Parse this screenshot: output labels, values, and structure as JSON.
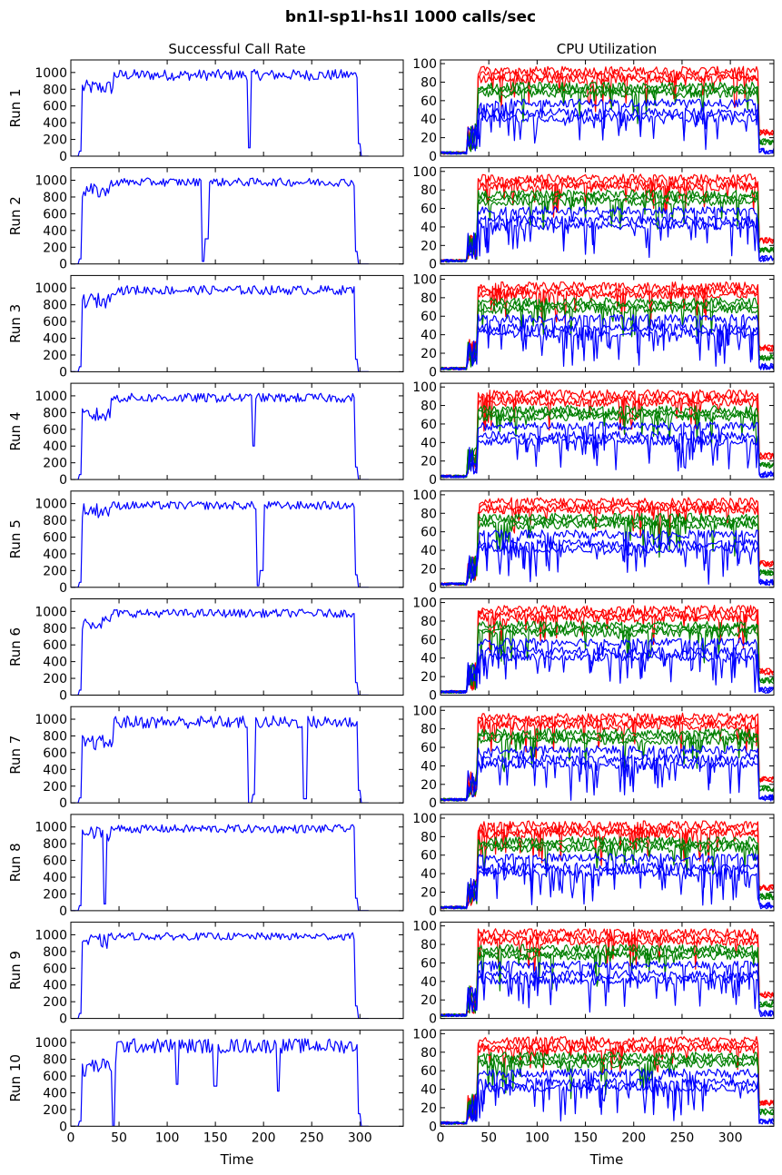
{
  "figure": {
    "title": "bn1l-sp1l-hs1l 1000 calls/sec",
    "column_titles": [
      "Successful Call Rate",
      "CPU Utilization"
    ],
    "row_labels": [
      "Run 1",
      "Run 2",
      "Run 3",
      "Run 4",
      "Run 5",
      "Run 6",
      "Run 7",
      "Run 8",
      "Run 9",
      "Run 10"
    ],
    "xlabel": "Time"
  },
  "chart_data": [
    {
      "type": "line",
      "panel": "Successful Call Rate",
      "runs": 10,
      "xlim": [
        0,
        345
      ],
      "ylim": [
        0,
        1150
      ],
      "xticks": [
        0,
        50,
        100,
        150,
        200,
        250,
        300
      ],
      "yticks": [
        0,
        200,
        400,
        600,
        800,
        1000
      ],
      "series_colors": [
        "#0000ff"
      ],
      "runs_data": [
        {
          "run": "Run 1",
          "ramp_start": 12,
          "ramp_level": 850,
          "plateau_start": 45,
          "plateau": 1000,
          "end": 298,
          "dips": [
            [
              185,
              100
            ]
          ],
          "noise": 60
        },
        {
          "run": "Run 2",
          "ramp_start": 12,
          "ramp_level": 900,
          "plateau_start": 42,
          "plateau": 1000,
          "end": 295,
          "dips": [
            [
              137,
              30
            ],
            [
              141,
              300
            ]
          ],
          "noise": 45
        },
        {
          "run": "Run 3",
          "ramp_start": 12,
          "ramp_level": 880,
          "plateau_start": 42,
          "plateau": 1000,
          "end": 295,
          "dips": [],
          "noise": 50
        },
        {
          "run": "Run 4",
          "ramp_start": 12,
          "ramp_level": 800,
          "plateau_start": 42,
          "plateau": 1000,
          "end": 295,
          "dips": [
            [
              190,
              400
            ]
          ],
          "noise": 50
        },
        {
          "run": "Run 5",
          "ramp_start": 12,
          "ramp_level": 950,
          "plateau_start": 42,
          "plateau": 1000,
          "end": 295,
          "dips": [
            [
              194,
              20
            ],
            [
              198,
              200
            ]
          ],
          "noise": 45
        },
        {
          "run": "Run 6",
          "ramp_start": 12,
          "ramp_level": 900,
          "plateau_start": 42,
          "plateau": 1000,
          "end": 295,
          "dips": [],
          "noise": 45
        },
        {
          "run": "Run 7",
          "ramp_start": 12,
          "ramp_level": 750,
          "plateau_start": 45,
          "plateau": 1000,
          "end": 298,
          "dips": [
            [
              186,
              0
            ],
            [
              190,
              100
            ],
            [
              243,
              50
            ]
          ],
          "noise": 70
        },
        {
          "run": "Run 8",
          "ramp_start": 12,
          "ramp_level": 950,
          "plateau_start": 42,
          "plateau": 1000,
          "end": 295,
          "dips": [
            [
              35,
              80
            ]
          ],
          "noise": 45
        },
        {
          "run": "Run 9",
          "ramp_start": 12,
          "ramp_level": 950,
          "plateau_start": 42,
          "plateau": 1000,
          "end": 295,
          "dips": [],
          "noise": 40
        },
        {
          "run": "Run 10",
          "ramp_start": 12,
          "ramp_level": 750,
          "plateau_start": 48,
          "plateau": 1000,
          "end": 298,
          "dips": [
            [
              14,
              600
            ],
            [
              44,
              0
            ],
            [
              110,
              500
            ],
            [
              150,
              480
            ],
            [
              215,
              420
            ]
          ],
          "noise": 80
        }
      ]
    },
    {
      "type": "line",
      "panel": "CPU Utilization",
      "runs": 10,
      "xlim": [
        0,
        345
      ],
      "ylim": [
        0,
        104
      ],
      "xticks": [
        0,
        50,
        100,
        150,
        200,
        250,
        300
      ],
      "yticks": [
        0,
        20,
        40,
        60,
        80,
        100
      ],
      "series": [
        {
          "color": "#ff0000",
          "levels": [
            93,
            88,
            84
          ]
        },
        {
          "color": "#008000",
          "levels": [
            76,
            72,
            68
          ]
        },
        {
          "color": "#0000ff",
          "levels": [
            58,
            48,
            42
          ]
        }
      ],
      "ramp_start": 38,
      "ramp_end": 330,
      "idle_levels": [
        25,
        15,
        5
      ]
    }
  ]
}
